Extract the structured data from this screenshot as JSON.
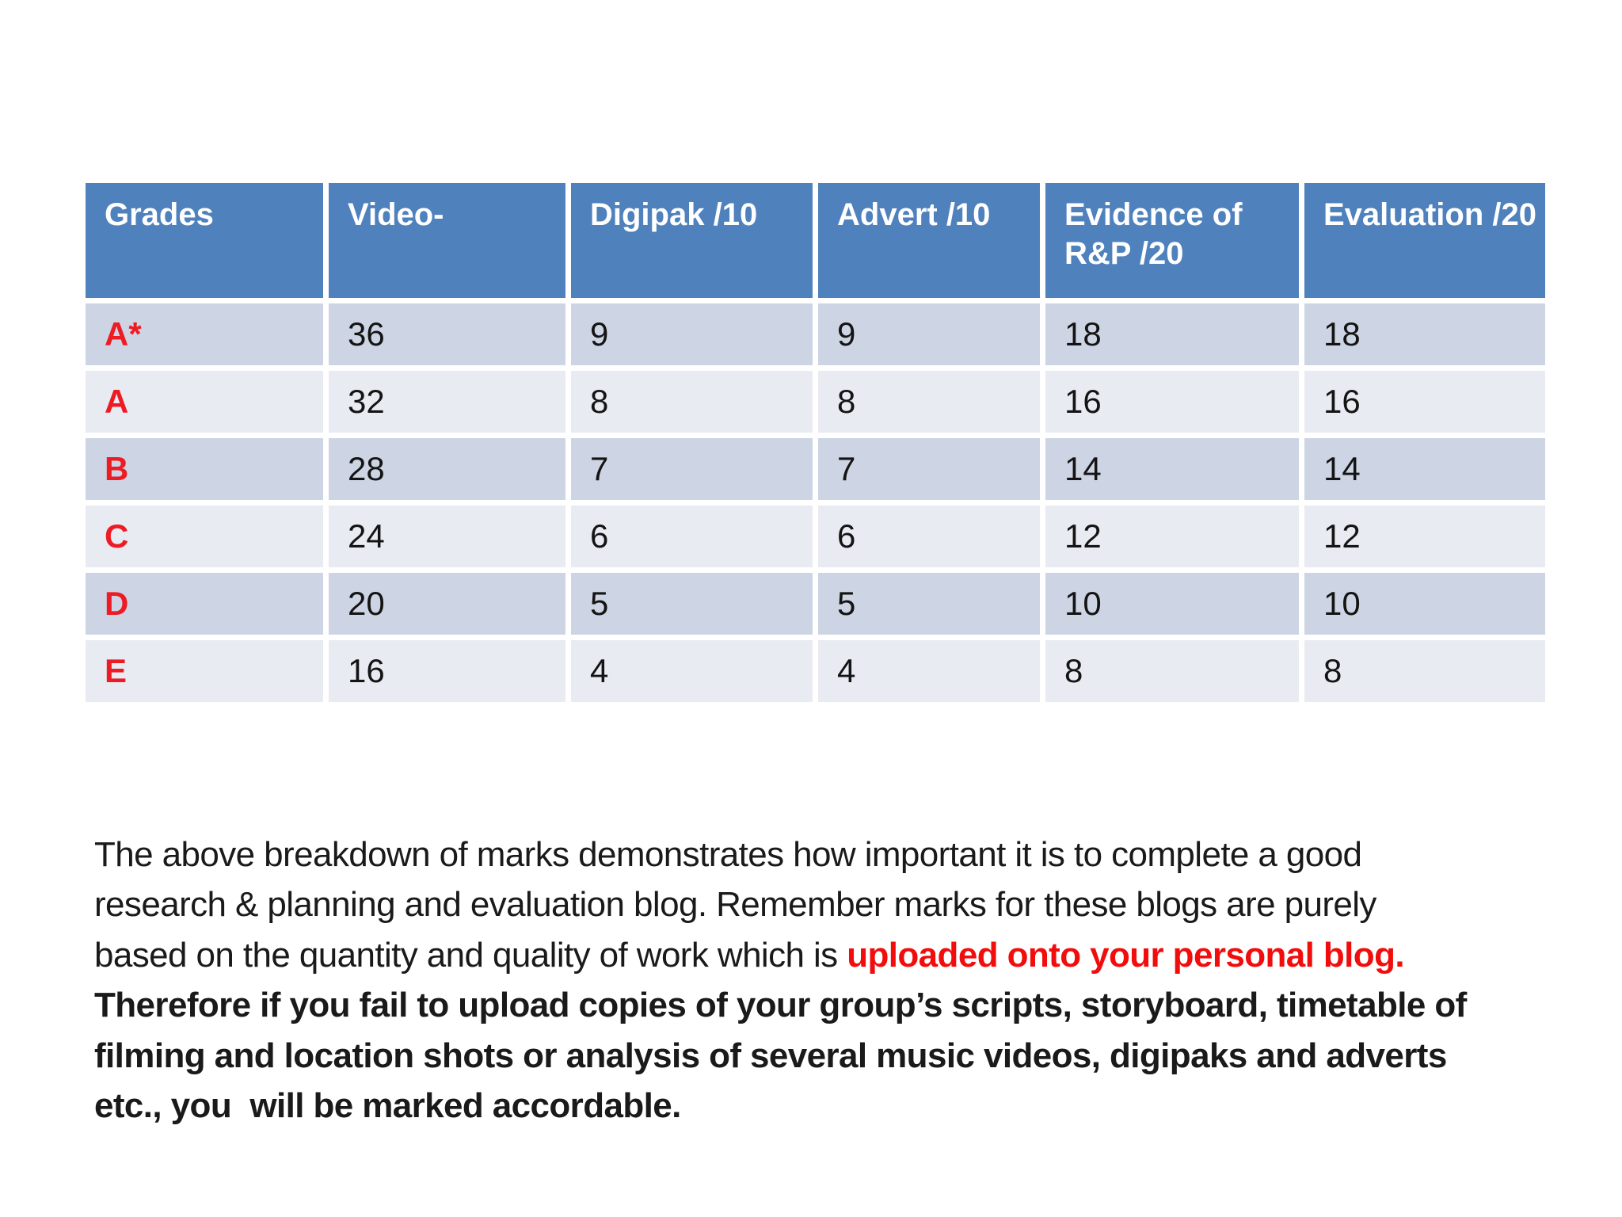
{
  "table": {
    "columns": [
      "Grades",
      "Video-",
      "Digipak /10",
      "Advert /10",
      "Evidence of R&P /20",
      "Evaluation /20"
    ],
    "rows": [
      {
        "grade": "A*",
        "video": "36",
        "digipak": "9",
        "advert": "9",
        "evidence": "18",
        "evaluation": "18"
      },
      {
        "grade": "A",
        "video": "32",
        "digipak": "8",
        "advert": "8",
        "evidence": "16",
        "evaluation": "16"
      },
      {
        "grade": "B",
        "video": "28",
        "digipak": "7",
        "advert": "7",
        "evidence": "14",
        "evaluation": "14"
      },
      {
        "grade": "C",
        "video": "24",
        "digipak": "6",
        "advert": "6",
        "evidence": "12",
        "evaluation": "12"
      },
      {
        "grade": "D",
        "video": "20",
        "digipak": "5",
        "advert": "5",
        "evidence": "10",
        "evaluation": "10"
      },
      {
        "grade": "E",
        "video": "16",
        "digipak": "4",
        "advert": "4",
        "evidence": "8",
        "evaluation": "8"
      }
    ],
    "colors": {
      "header_bg": "#4f81bd",
      "header_text": "#ffffff",
      "row_dark": "#cdd4e3",
      "row_light": "#e9ebf2",
      "grade_red": "#ed1c24"
    }
  },
  "paragraph": {
    "line1": "The above breakdown of marks demonstrates how important it is to complete a good",
    "line2": "research & planning and evaluation blog. Remember marks for these blogs are purely",
    "line3_normal": "based on the quantity and quality of work which is ",
    "line3_red": "uploaded onto your personal blog.",
    "line4": "Therefore if you fail to upload copies of your group’s scripts, storyboard, timetable of",
    "line5": "filming and location shots or analysis of several music videos, digipaks and adverts",
    "line6": "etc., you  will be marked accordable.",
    "highlight_color": "#f20d0d"
  }
}
